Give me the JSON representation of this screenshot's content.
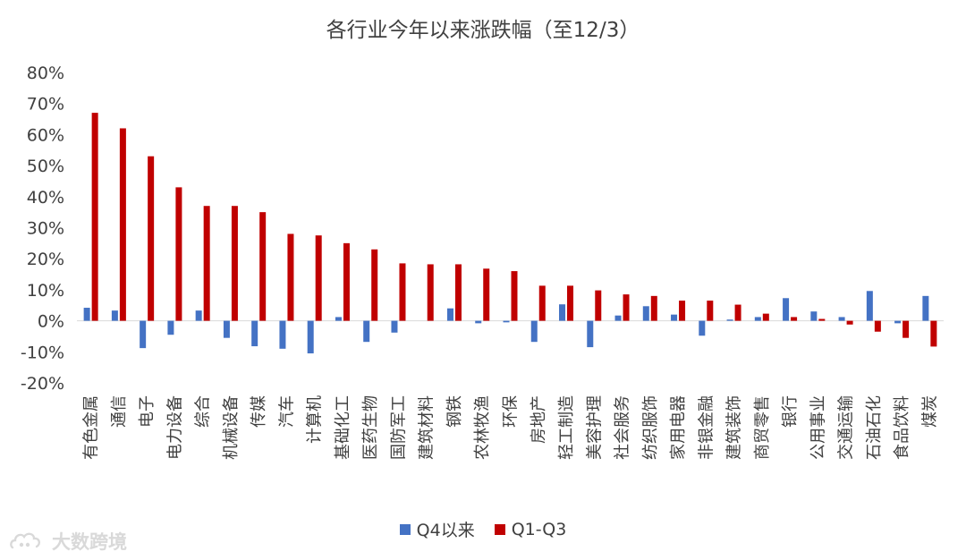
{
  "chart_data": {
    "type": "bar",
    "title": "各行业今年以来涨跌幅（至12/3）",
    "categories": [
      "有色金属",
      "通信",
      "电子",
      "电力设备",
      "综合",
      "机械设备",
      "传媒",
      "汽车",
      "计算机",
      "基础化工",
      "医药生物",
      "国防军工",
      "建筑材料",
      "钢铁",
      "农林牧渔",
      "环保",
      "房地产",
      "轻工制造",
      "美容护理",
      "社会服务",
      "纺织服饰",
      "家用电器",
      "非银金融",
      "建筑装饰",
      "商贸零售",
      "银行",
      "公用事业",
      "交通运输",
      "石油石化",
      "食品饮料",
      "煤炭"
    ],
    "series": [
      {
        "name": "Q4以来",
        "color": "#4472C4",
        "values": [
          4.2,
          3.3,
          -8.8,
          -4.5,
          3.3,
          -5.5,
          -8.2,
          -9.0,
          -10.5,
          1.2,
          -6.8,
          -3.8,
          0.0,
          4.0,
          -0.8,
          -0.5,
          -6.8,
          5.3,
          -8.5,
          1.7,
          4.7,
          2.0,
          -4.8,
          0.4,
          1.2,
          7.3,
          3.0,
          1.2,
          9.6,
          -0.8,
          8.0
        ]
      },
      {
        "name": "Q1-Q3",
        "color": "#C00000",
        "values": [
          67.0,
          62.0,
          53.0,
          43.0,
          37.0,
          37.0,
          35.0,
          28.0,
          27.5,
          25.0,
          23.0,
          18.5,
          18.2,
          18.2,
          16.8,
          16.0,
          11.3,
          11.3,
          9.8,
          8.5,
          8.0,
          6.5,
          6.5,
          5.2,
          2.3,
          1.2,
          0.6,
          -1.2,
          -3.5,
          -5.5,
          -8.3
        ]
      }
    ],
    "y_ticks": [
      80,
      70,
      60,
      50,
      40,
      30,
      20,
      10,
      0,
      -10,
      -20
    ],
    "y_tick_labels": [
      "80%",
      "70%",
      "60%",
      "50%",
      "40%",
      "30%",
      "20%",
      "10%",
      "0%",
      "-10%",
      "-20%"
    ],
    "ylim": [
      -20,
      80
    ],
    "grid": false,
    "legend_position": "bottom"
  },
  "watermark_text": "大数跨境",
  "watermark_icon": "cloud-logo-icon"
}
